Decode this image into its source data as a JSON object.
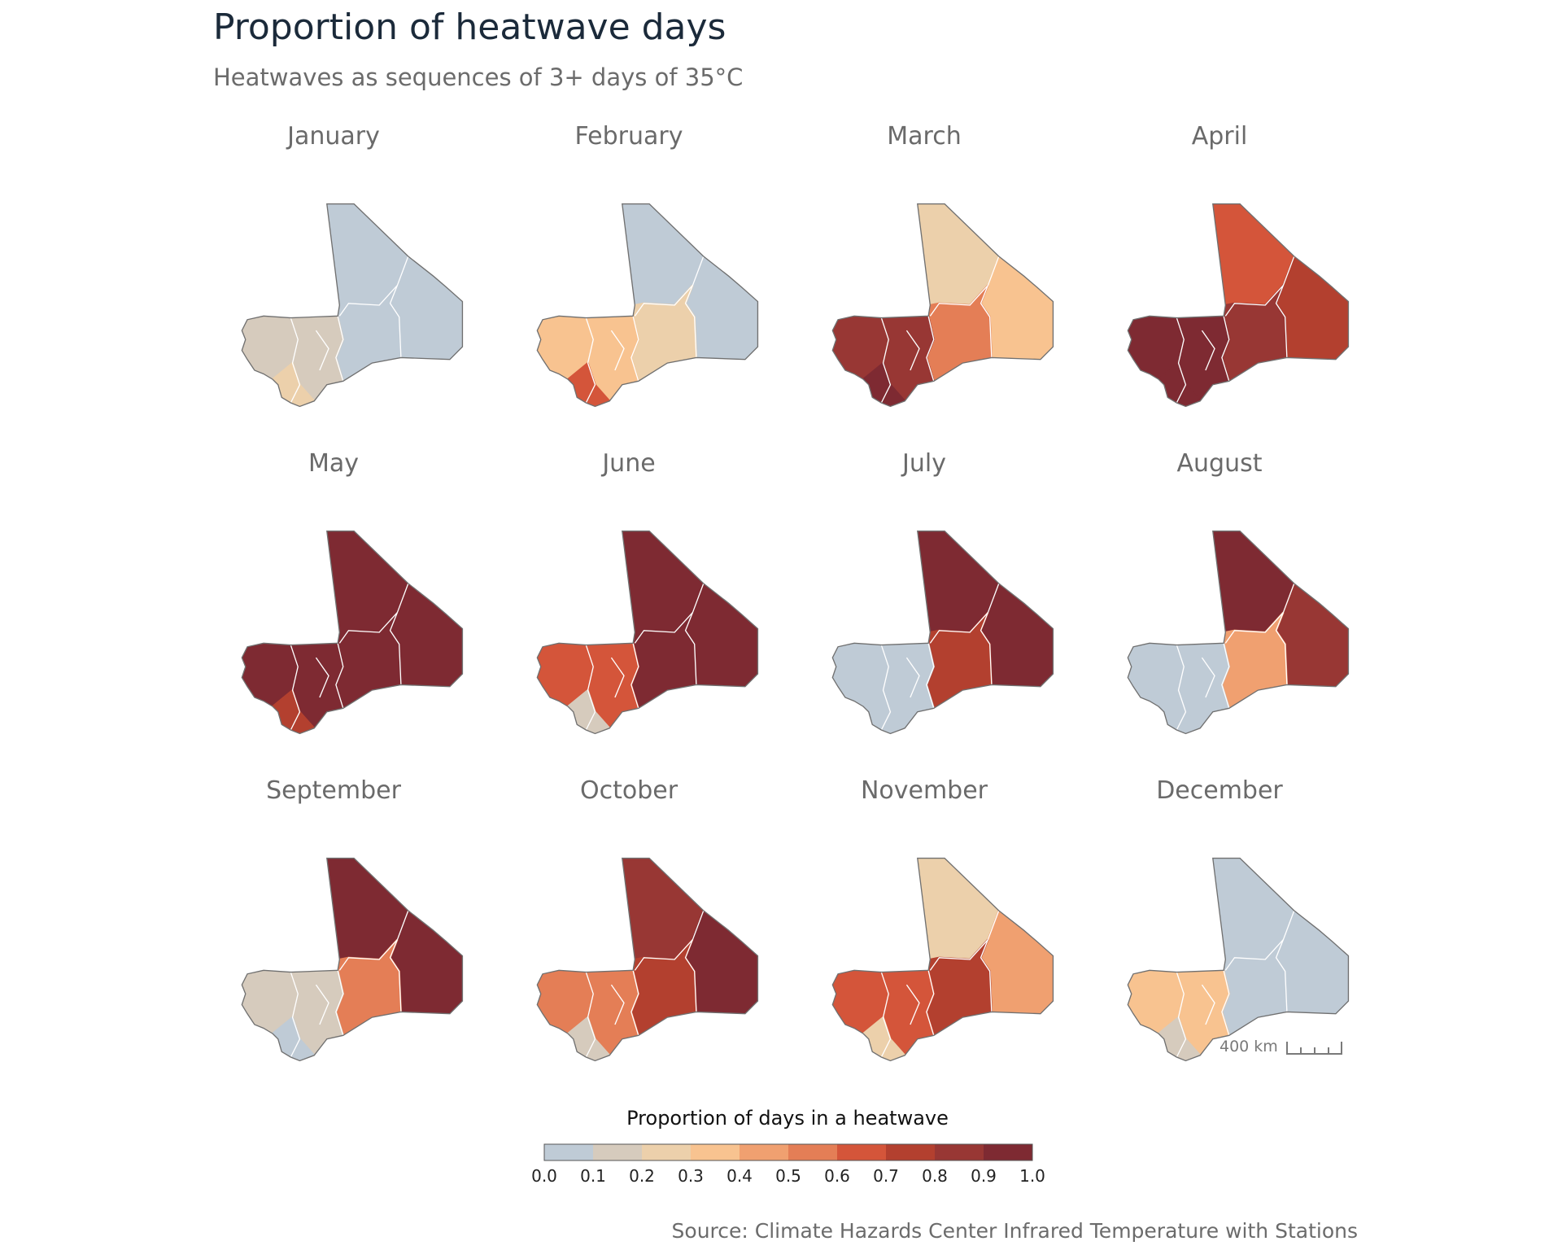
{
  "title": "Proportion of heatwave days",
  "subtitle": "Heatwaves as sequences of 3+ days of 35°C",
  "months": [
    "January",
    "February",
    "March",
    "April",
    "May",
    "June",
    "July",
    "August",
    "September",
    "October",
    "November",
    "December"
  ],
  "legend": {
    "title": "Proportion of days in a heatwave",
    "ticks": [
      "0.0",
      "0.1",
      "0.2",
      "0.3",
      "0.4",
      "0.5",
      "0.6",
      "0.7",
      "0.8",
      "0.9",
      "1.0"
    ],
    "colors": [
      "#bfcbd6",
      "#d6cbbd",
      "#ecd0ab",
      "#f8c390",
      "#f0a070",
      "#e47e56",
      "#d4553a",
      "#b3402f",
      "#983734",
      "#7e2a32"
    ]
  },
  "map_values": {
    "description_keys": [
      "north",
      "northeast",
      "center",
      "southwest",
      "south"
    ],
    "January": [
      0.02,
      0.02,
      0.02,
      0.1,
      0.22
    ],
    "February": [
      0.02,
      0.03,
      0.22,
      0.3,
      0.6
    ],
    "March": [
      0.28,
      0.35,
      0.55,
      0.88,
      0.92
    ],
    "April": [
      0.62,
      0.75,
      0.85,
      0.95,
      0.92
    ],
    "May": [
      0.95,
      0.95,
      0.95,
      0.95,
      0.7
    ],
    "June": [
      0.95,
      0.95,
      0.92,
      0.62,
      0.15
    ],
    "July": [
      0.95,
      0.95,
      0.7,
      0.05,
      0.02
    ],
    "August": [
      0.92,
      0.88,
      0.4,
      0.02,
      0.02
    ],
    "September": [
      0.93,
      0.92,
      0.5,
      0.1,
      0.02
    ],
    "October": [
      0.82,
      0.92,
      0.72,
      0.58,
      0.1
    ],
    "November": [
      0.22,
      0.45,
      0.72,
      0.62,
      0.22
    ],
    "December": [
      0.02,
      0.05,
      0.05,
      0.35,
      0.15
    ]
  },
  "scalebar": {
    "label": "400 km"
  },
  "source": "Source: Climate Hazards Center Infrared Temperature with Stations"
}
